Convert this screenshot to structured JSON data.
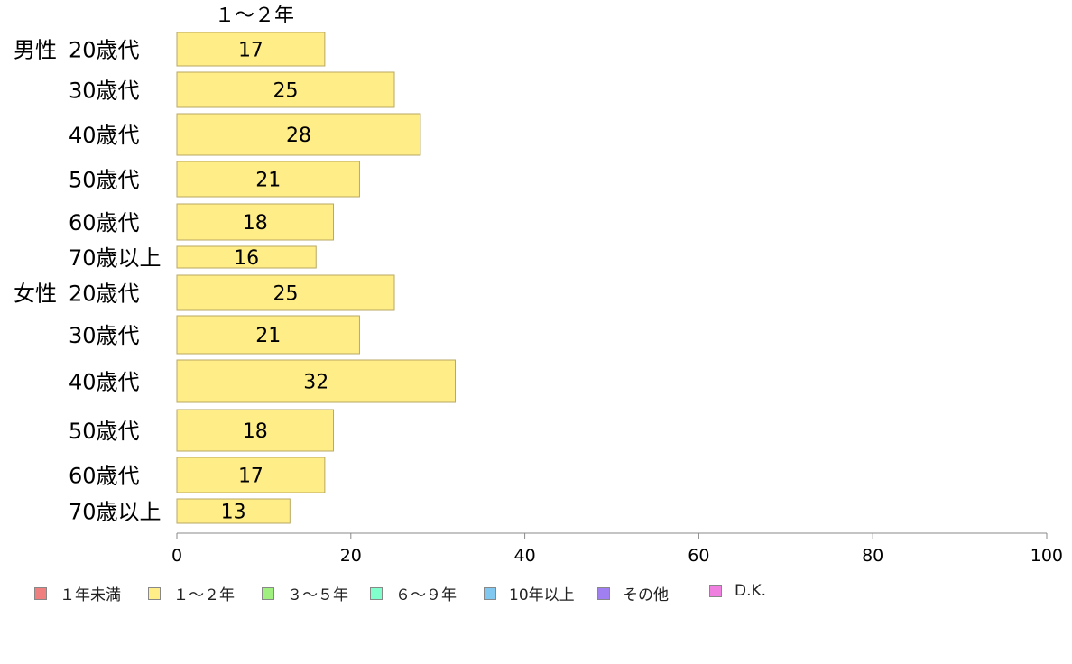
{
  "chart_data": {
    "type": "bar",
    "orientation": "horizontal",
    "series_label": "１～２年",
    "groups": [
      {
        "label": "男性",
        "rows": [
          {
            "label": "20歳代",
            "value": 17
          },
          {
            "label": "30歳代",
            "value": 25
          },
          {
            "label": "40歳代",
            "value": 28
          },
          {
            "label": "50歳代",
            "value": 21
          },
          {
            "label": "60歳代",
            "value": 18
          },
          {
            "label": "70歳以上",
            "value": 16
          }
        ]
      },
      {
        "label": "女性",
        "rows": [
          {
            "label": "20歳代",
            "value": 25
          },
          {
            "label": "30歳代",
            "value": 21
          },
          {
            "label": "40歳代",
            "value": 32
          },
          {
            "label": "50歳代",
            "value": 18
          },
          {
            "label": "60歳代",
            "value": 17
          },
          {
            "label": "70歳以上",
            "value": 13
          }
        ]
      }
    ],
    "xlim": [
      0,
      100
    ],
    "xticks": [
      0,
      20,
      40,
      60,
      80,
      100
    ],
    "bar_color": "#ffee88",
    "bar_border": "#b8a860",
    "legend": [
      {
        "label": "１年未満",
        "color": "#f08080"
      },
      {
        "label": "１～２年",
        "color": "#ffee88"
      },
      {
        "label": "３～５年",
        "color": "#a0f080"
      },
      {
        "label": "６～９年",
        "color": "#80ffcc"
      },
      {
        "label": "10年以上",
        "color": "#80c8f0"
      },
      {
        "label": "その他",
        "color": "#a080f0"
      },
      {
        "label": "D.K.",
        "color": "#f080e0"
      }
    ]
  }
}
